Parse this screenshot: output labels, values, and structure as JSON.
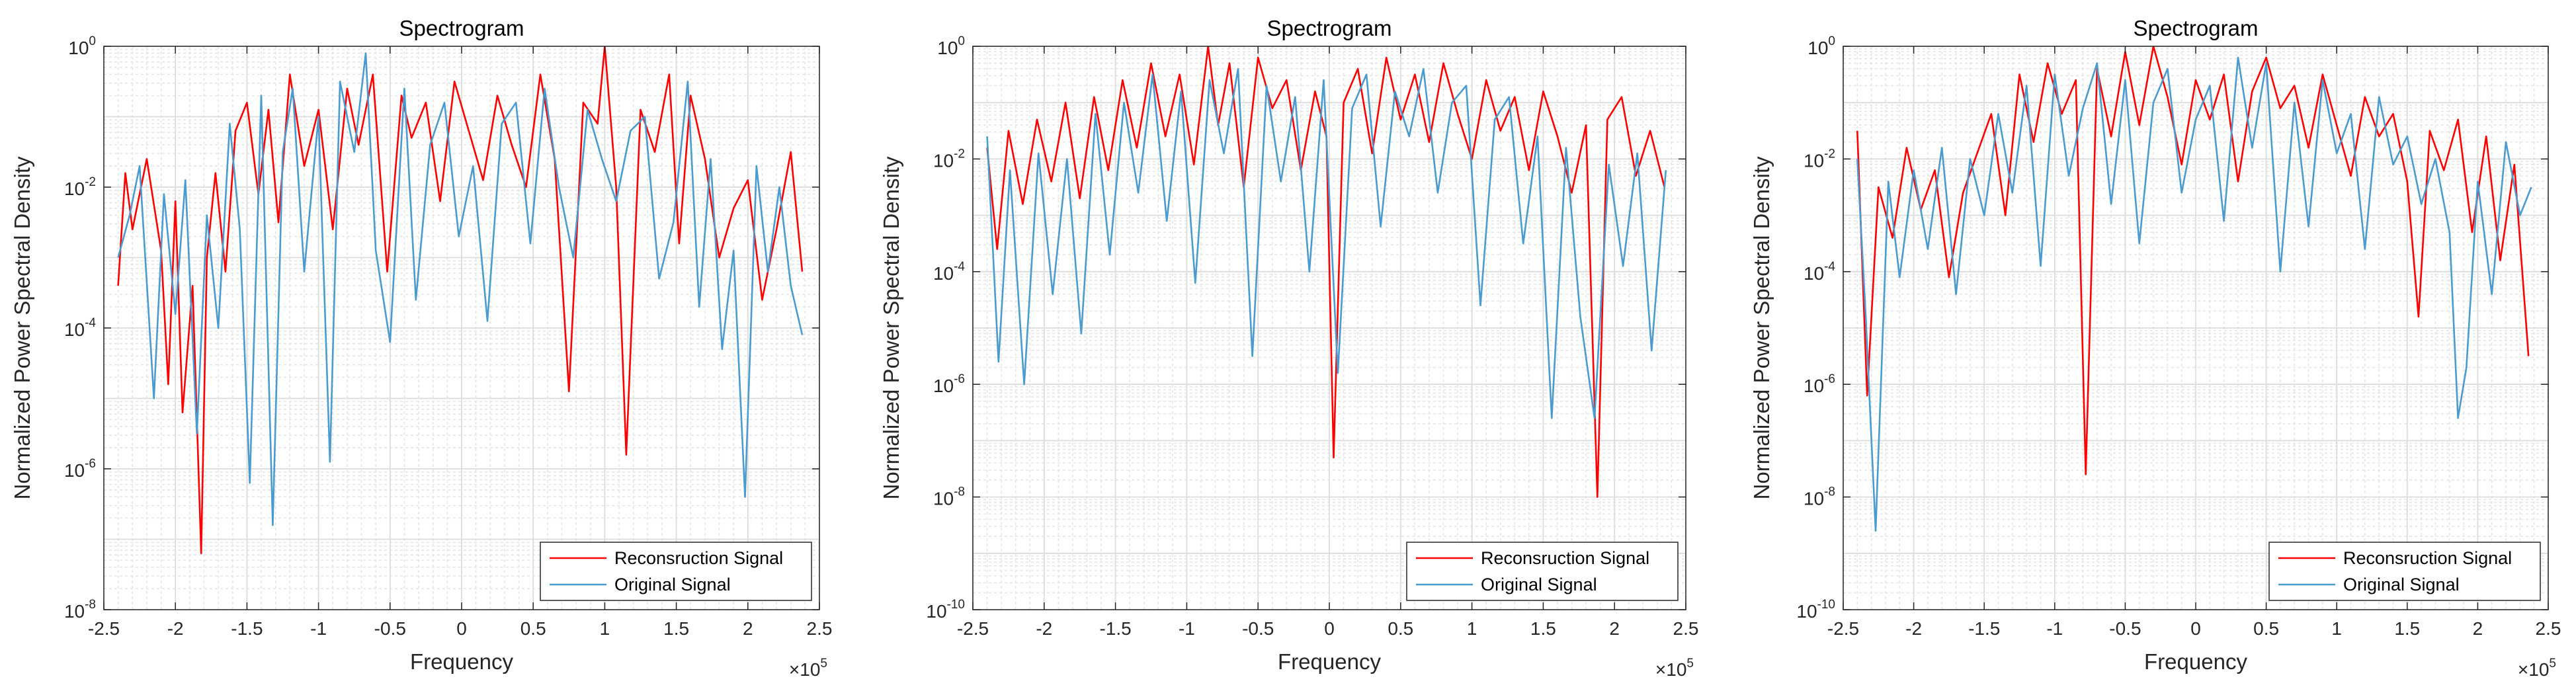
{
  "colors": {
    "reconstruction": "#ff0000",
    "original": "#4a9bd0",
    "axis": "#262626",
    "grid": "#dcdcdc"
  },
  "chart_data": [
    {
      "type": "line",
      "title": "Spectrogram",
      "xlabel": "Frequency",
      "ylabel": "Normalized Power Spectral Density",
      "x_exponent_label": "×10",
      "x_exponent": "5",
      "xlim": [
        -2.5,
        2.5
      ],
      "xticks": [
        -2.5,
        -2,
        -1.5,
        -1,
        -0.5,
        0,
        0.5,
        1,
        1.5,
        2,
        2.5
      ],
      "x_tick_labels": [
        "-2.5",
        "-2",
        "-1.5",
        "-1",
        "-0.5",
        "0",
        "0.5",
        "1",
        "1.5",
        "2",
        "2.5"
      ],
      "yscale": "log",
      "ylim_exp": [
        -8,
        0
      ],
      "y_tick_exponents": [
        -8,
        -6,
        -4,
        -2,
        0
      ],
      "y_tick_labels": [
        {
          "base": "10",
          "exp": "-8"
        },
        {
          "base": "10",
          "exp": "-6"
        },
        {
          "base": "10",
          "exp": "-4"
        },
        {
          "base": "10",
          "exp": "-2"
        },
        {
          "base": "10",
          "exp": "0"
        }
      ],
      "grid": true,
      "legend_position": "bottom-right",
      "series": [
        {
          "name": "Reconsruction Signal",
          "color": "#ff0000",
          "x": [
            -2.4,
            -2.35,
            -2.3,
            -2.2,
            -2.1,
            -2.05,
            -2.0,
            -1.95,
            -1.88,
            -1.82,
            -1.78,
            -1.72,
            -1.65,
            -1.58,
            -1.5,
            -1.42,
            -1.35,
            -1.28,
            -1.2,
            -1.1,
            -1.0,
            -0.9,
            -0.8,
            -0.72,
            -0.62,
            -0.52,
            -0.42,
            -0.35,
            -0.25,
            -0.15,
            -0.05,
            0.05,
            0.15,
            0.25,
            0.35,
            0.45,
            0.55,
            0.65,
            0.75,
            0.85,
            0.95,
            1.0,
            1.08,
            1.15,
            1.25,
            1.35,
            1.45,
            1.52,
            1.6,
            1.7,
            1.8,
            1.9,
            2.0,
            2.1,
            2.2,
            2.3,
            2.38
          ],
          "log10_y": [
            -3.4,
            -1.8,
            -2.6,
            -1.6,
            -2.9,
            -4.8,
            -2.2,
            -5.2,
            -3.4,
            -7.2,
            -3.0,
            -1.8,
            -3.2,
            -1.2,
            -0.8,
            -2.1,
            -0.9,
            -2.5,
            -0.4,
            -1.7,
            -0.9,
            -2.6,
            -0.6,
            -1.4,
            -0.4,
            -3.2,
            -0.7,
            -1.3,
            -0.8,
            -2.2,
            -0.5,
            -1.2,
            -1.9,
            -0.7,
            -1.4,
            -2.0,
            -0.4,
            -1.6,
            -4.9,
            -0.8,
            -1.1,
            0.0,
            -2.0,
            -5.8,
            -0.9,
            -1.5,
            -0.4,
            -2.8,
            -0.7,
            -1.6,
            -3.0,
            -2.3,
            -1.9,
            -3.6,
            -2.6,
            -1.5,
            -3.2
          ]
        },
        {
          "name": "Original Signal",
          "color": "#4a9bd0",
          "x": [
            -2.4,
            -2.32,
            -2.25,
            -2.15,
            -2.08,
            -2.0,
            -1.93,
            -1.85,
            -1.78,
            -1.7,
            -1.62,
            -1.55,
            -1.48,
            -1.4,
            -1.32,
            -1.25,
            -1.18,
            -1.1,
            -1.0,
            -0.92,
            -0.85,
            -0.75,
            -0.67,
            -0.6,
            -0.5,
            -0.4,
            -0.32,
            -0.22,
            -0.12,
            -0.02,
            0.08,
            0.18,
            0.28,
            0.38,
            0.48,
            0.58,
            0.68,
            0.78,
            0.88,
            0.98,
            1.08,
            1.18,
            1.28,
            1.38,
            1.48,
            1.58,
            1.66,
            1.74,
            1.82,
            1.9,
            1.98,
            2.06,
            2.14,
            2.22,
            2.3,
            2.38
          ],
          "log10_y": [
            -3.0,
            -2.4,
            -1.7,
            -5.0,
            -2.1,
            -3.8,
            -1.9,
            -5.5,
            -2.4,
            -4.0,
            -1.1,
            -2.6,
            -6.2,
            -0.7,
            -6.8,
            -1.5,
            -0.6,
            -3.2,
            -1.0,
            -5.9,
            -0.5,
            -1.5,
            -0.1,
            -2.9,
            -4.2,
            -0.6,
            -3.6,
            -1.4,
            -0.8,
            -2.7,
            -1.7,
            -3.9,
            -1.1,
            -0.8,
            -2.8,
            -0.6,
            -2.0,
            -3.0,
            -0.9,
            -1.6,
            -2.2,
            -1.2,
            -1.0,
            -3.3,
            -2.5,
            -0.5,
            -3.7,
            -1.6,
            -4.3,
            -2.9,
            -6.4,
            -1.7,
            -3.2,
            -2.0,
            -3.4,
            -4.1
          ]
        }
      ]
    },
    {
      "type": "line",
      "title": "Spectrogram",
      "xlabel": "Frequency",
      "ylabel": "Normalized Power Spectral Density",
      "x_exponent_label": "×10",
      "x_exponent": "5",
      "xlim": [
        -2.5,
        2.5
      ],
      "xticks": [
        -2.5,
        -2,
        -1.5,
        -1,
        -0.5,
        0,
        0.5,
        1,
        1.5,
        2,
        2.5
      ],
      "x_tick_labels": [
        "-2.5",
        "-2",
        "-1.5",
        "-1",
        "-0.5",
        "0",
        "0.5",
        "1",
        "1.5",
        "2",
        "2.5"
      ],
      "yscale": "log",
      "ylim_exp": [
        -10,
        0
      ],
      "y_tick_exponents": [
        -10,
        -8,
        -6,
        -4,
        -2,
        0
      ],
      "y_tick_labels": [
        {
          "base": "10",
          "exp": "-10"
        },
        {
          "base": "10",
          "exp": "-8"
        },
        {
          "base": "10",
          "exp": "-6"
        },
        {
          "base": "10",
          "exp": "-4"
        },
        {
          "base": "10",
          "exp": "-2"
        },
        {
          "base": "10",
          "exp": "0"
        }
      ],
      "grid": true,
      "legend_position": "bottom-right",
      "series": [
        {
          "name": "Reconsruction Signal",
          "color": "#ff0000",
          "x": [
            -2.4,
            -2.33,
            -2.25,
            -2.15,
            -2.05,
            -1.95,
            -1.85,
            -1.75,
            -1.65,
            -1.55,
            -1.45,
            -1.35,
            -1.25,
            -1.15,
            -1.05,
            -0.95,
            -0.85,
            -0.78,
            -0.7,
            -0.6,
            -0.5,
            -0.4,
            -0.3,
            -0.2,
            -0.1,
            -0.02,
            0.03,
            0.1,
            0.2,
            0.3,
            0.4,
            0.5,
            0.6,
            0.7,
            0.8,
            0.9,
            1.0,
            1.1,
            1.2,
            1.3,
            1.4,
            1.5,
            1.6,
            1.7,
            1.8,
            1.88,
            1.95,
            2.05,
            2.15,
            2.25,
            2.35
          ],
          "log10_y": [
            -1.8,
            -3.6,
            -1.5,
            -2.8,
            -1.3,
            -2.4,
            -1.0,
            -2.7,
            -0.9,
            -2.2,
            -0.6,
            -1.8,
            -0.3,
            -1.6,
            -0.5,
            -2.1,
            0.0,
            -1.4,
            -0.3,
            -2.5,
            -0.2,
            -1.1,
            -0.6,
            -2.2,
            -0.8,
            -1.6,
            -7.3,
            -1.0,
            -0.4,
            -1.9,
            -0.2,
            -1.3,
            -0.5,
            -1.7,
            -0.3,
            -1.2,
            -2.0,
            -0.6,
            -1.5,
            -0.9,
            -2.2,
            -0.8,
            -1.6,
            -2.6,
            -1.4,
            -8.0,
            -1.3,
            -0.9,
            -2.3,
            -1.5,
            -2.5
          ]
        },
        {
          "name": "Original Signal",
          "color": "#4a9bd0",
          "x": [
            -2.4,
            -2.32,
            -2.24,
            -2.14,
            -2.04,
            -1.94,
            -1.84,
            -1.74,
            -1.64,
            -1.54,
            -1.44,
            -1.34,
            -1.24,
            -1.14,
            -1.04,
            -0.94,
            -0.84,
            -0.74,
            -0.64,
            -0.54,
            -0.44,
            -0.34,
            -0.24,
            -0.14,
            -0.04,
            0.06,
            0.16,
            0.26,
            0.36,
            0.46,
            0.56,
            0.66,
            0.76,
            0.86,
            0.96,
            1.06,
            1.16,
            1.26,
            1.36,
            1.46,
            1.56,
            1.66,
            1.76,
            1.86,
            1.96,
            2.06,
            2.16,
            2.26,
            2.36
          ],
          "log10_y": [
            -1.6,
            -5.6,
            -2.2,
            -6.0,
            -1.9,
            -4.4,
            -2.0,
            -5.1,
            -1.2,
            -3.7,
            -1.0,
            -2.6,
            -0.5,
            -3.1,
            -0.8,
            -4.2,
            -0.6,
            -1.9,
            -0.4,
            -5.5,
            -0.7,
            -2.4,
            -0.9,
            -4.0,
            -0.6,
            -5.8,
            -1.1,
            -0.5,
            -3.2,
            -0.8,
            -1.6,
            -0.4,
            -2.6,
            -1.0,
            -0.7,
            -4.6,
            -1.3,
            -0.9,
            -3.5,
            -1.6,
            -6.6,
            -1.8,
            -4.8,
            -6.6,
            -2.1,
            -3.9,
            -1.9,
            -5.4,
            -2.2
          ]
        }
      ]
    },
    {
      "type": "line",
      "title": "Spectrogram",
      "xlabel": "Frequency",
      "ylabel": "Normalized Power Spectral Density",
      "x_exponent_label": "×10",
      "x_exponent": "5",
      "xlim": [
        -2.5,
        2.5
      ],
      "xticks": [
        -2.5,
        -2,
        -1.5,
        -1,
        -0.5,
        0,
        0.5,
        1,
        1.5,
        2,
        2.5
      ],
      "x_tick_labels": [
        "-2.5",
        "-2",
        "-1.5",
        "-1",
        "-0.5",
        "0",
        "0.5",
        "1",
        "1.5",
        "2",
        "2.5"
      ],
      "yscale": "log",
      "ylim_exp": [
        -10,
        0
      ],
      "y_tick_exponents": [
        -10,
        -8,
        -6,
        -4,
        -2,
        0
      ],
      "y_tick_labels": [
        {
          "base": "10",
          "exp": "-10"
        },
        {
          "base": "10",
          "exp": "-8"
        },
        {
          "base": "10",
          "exp": "-6"
        },
        {
          "base": "10",
          "exp": "-4"
        },
        {
          "base": "10",
          "exp": "-2"
        },
        {
          "base": "10",
          "exp": "0"
        }
      ],
      "grid": true,
      "legend_position": "bottom-right",
      "series": [
        {
          "name": "Reconsruction Signal",
          "color": "#ff0000",
          "x": [
            -2.4,
            -2.33,
            -2.25,
            -2.15,
            -2.05,
            -1.95,
            -1.85,
            -1.75,
            -1.65,
            -1.55,
            -1.45,
            -1.35,
            -1.25,
            -1.15,
            -1.05,
            -0.95,
            -0.85,
            -0.78,
            -0.7,
            -0.6,
            -0.5,
            -0.4,
            -0.3,
            -0.2,
            -0.1,
            0.0,
            0.1,
            0.2,
            0.3,
            0.4,
            0.5,
            0.6,
            0.7,
            0.8,
            0.9,
            1.0,
            1.1,
            1.2,
            1.3,
            1.4,
            1.5,
            1.58,
            1.66,
            1.76,
            1.86,
            1.96,
            2.06,
            2.16,
            2.26,
            2.36
          ],
          "log10_y": [
            -1.5,
            -6.2,
            -2.5,
            -3.4,
            -1.8,
            -2.9,
            -2.2,
            -4.1,
            -2.6,
            -1.9,
            -1.2,
            -3.0,
            -0.5,
            -1.7,
            -0.3,
            -1.2,
            -0.6,
            -7.6,
            -0.4,
            -1.6,
            -0.1,
            -1.4,
            0.0,
            -0.9,
            -2.1,
            -0.6,
            -1.3,
            -0.5,
            -2.4,
            -0.8,
            -0.2,
            -1.1,
            -0.7,
            -1.8,
            -0.5,
            -1.4,
            -2.3,
            -0.9,
            -1.6,
            -1.2,
            -2.4,
            -4.8,
            -1.5,
            -2.2,
            -1.3,
            -3.3,
            -1.6,
            -3.8,
            -2.1,
            -5.5
          ]
        },
        {
          "name": "Original Signal",
          "color": "#4a9bd0",
          "x": [
            -2.4,
            -2.34,
            -2.27,
            -2.18,
            -2.1,
            -2.0,
            -1.9,
            -1.8,
            -1.7,
            -1.6,
            -1.5,
            -1.4,
            -1.3,
            -1.2,
            -1.1,
            -1.0,
            -0.9,
            -0.8,
            -0.7,
            -0.6,
            -0.5,
            -0.4,
            -0.3,
            -0.2,
            -0.1,
            0.0,
            0.1,
            0.2,
            0.3,
            0.4,
            0.5,
            0.6,
            0.7,
            0.8,
            0.9,
            1.0,
            1.1,
            1.2,
            1.3,
            1.4,
            1.5,
            1.6,
            1.7,
            1.8,
            1.86,
            1.92,
            2.0,
            2.1,
            2.2,
            2.3,
            2.38
          ],
          "log10_y": [
            -2.0,
            -4.8,
            -8.6,
            -2.4,
            -4.1,
            -2.2,
            -3.6,
            -1.8,
            -4.4,
            -2.0,
            -3.0,
            -1.2,
            -2.6,
            -0.7,
            -3.9,
            -0.5,
            -2.3,
            -1.1,
            -0.3,
            -2.8,
            -0.6,
            -3.5,
            -1.0,
            -0.4,
            -2.6,
            -1.3,
            -0.7,
            -3.1,
            -0.2,
            -1.8,
            -0.3,
            -4.0,
            -1.0,
            -3.2,
            -0.6,
            -1.9,
            -1.2,
            -3.6,
            -0.9,
            -2.1,
            -1.6,
            -2.8,
            -2.0,
            -3.3,
            -6.6,
            -5.7,
            -2.4,
            -4.4,
            -1.7,
            -3.0,
            -2.5
          ]
        }
      ]
    }
  ]
}
